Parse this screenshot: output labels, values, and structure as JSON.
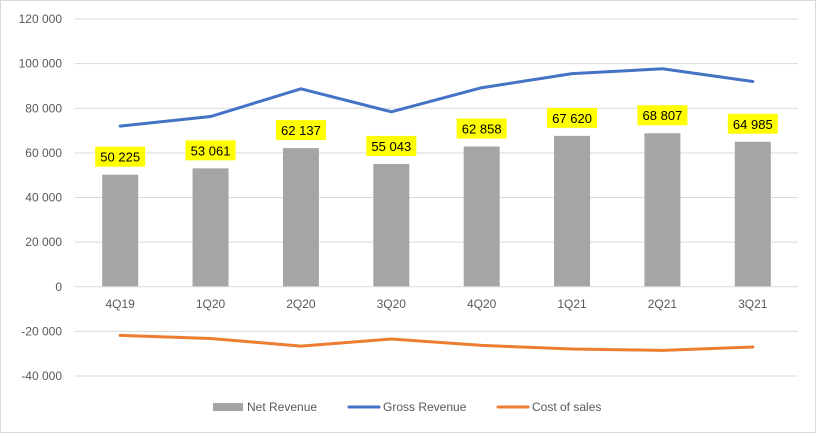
{
  "chart_data": {
    "type": "bar",
    "categories": [
      "4Q19",
      "1Q20",
      "2Q20",
      "3Q20",
      "4Q20",
      "1Q21",
      "2Q21",
      "3Q21"
    ],
    "ylim": [
      -40000,
      120000
    ],
    "y_ticks": [
      120000,
      100000,
      80000,
      60000,
      40000,
      20000,
      0,
      -20000,
      -40000
    ],
    "y_tick_labels": [
      "120 000",
      "100 000",
      "80 000",
      "60 000",
      "40 000",
      "20 000",
      "0",
      "-20 000",
      "-40 000"
    ],
    "grid": true,
    "legend_position": "bottom",
    "series": [
      {
        "name": "Net Revenue",
        "type": "bar",
        "color": "#a5a5a5",
        "values": [
          50225,
          53061,
          62137,
          55043,
          62858,
          67620,
          68807,
          64985
        ],
        "data_labels": [
          "50 225",
          "53 061",
          "62 137",
          "55 043",
          "62 858",
          "67 620",
          "68 807",
          "64 985"
        ],
        "label_background": "#ffff00"
      },
      {
        "name": "Gross Revenue",
        "type": "line",
        "color": "#4472c4",
        "values": [
          72000,
          76300,
          88700,
          78400,
          89200,
          95500,
          97700,
          92000
        ]
      },
      {
        "name": "Cost of sales",
        "type": "line",
        "color": "#ed7d31",
        "values": [
          -21800,
          -23200,
          -26600,
          -23400,
          -26300,
          -27900,
          -28500,
          -27000
        ]
      }
    ]
  }
}
